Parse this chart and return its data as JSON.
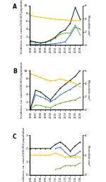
{
  "years": [
    1996,
    1997,
    1998,
    1999,
    2000,
    2001,
    2002,
    2003,
    2004,
    2005,
    2006
  ],
  "panel_A": {
    "label": "A",
    "black": [
      1.0,
      0.7,
      0.5,
      0.7,
      1.2,
      2.0,
      3.2,
      3.8,
      5.5,
      9.5,
      6.5
    ],
    "blue": [
      0.2,
      0.1,
      0.05,
      0.1,
      0.2,
      0.3,
      0.5,
      0.8,
      2.5,
      4.5,
      4.0
    ],
    "green": [
      0.8,
      0.6,
      0.45,
      0.6,
      1.0,
      1.7,
      2.7,
      3.0,
      3.0,
      5.0,
      2.5
    ],
    "gold": [
      4.5,
      4.3,
      4.2,
      4.1,
      4.0,
      3.9,
      3.85,
      3.8,
      3.75,
      3.7,
      3.65
    ],
    "left_ylim": [
      0,
      10
    ],
    "right_ylim": [
      0,
      6
    ],
    "left_yticks": [
      0,
      2,
      4,
      6,
      8,
      10
    ],
    "right_yticks": [
      0,
      2,
      4,
      6
    ]
  },
  "panel_B": {
    "label": "B",
    "black": [
      0.5,
      5.0,
      4.5,
      3.5,
      2.5,
      4.0,
      5.5,
      6.5,
      7.5,
      8.5,
      10.0
    ],
    "blue": [
      0.3,
      3.8,
      3.3,
      2.8,
      2.0,
      2.8,
      3.8,
      4.5,
      5.2,
      6.0,
      6.8
    ],
    "green": [
      0.2,
      1.2,
      1.1,
      0.7,
      0.5,
      1.2,
      1.7,
      2.0,
      2.3,
      2.5,
      3.2
    ],
    "gold": [
      5.5,
      5.2,
      4.9,
      4.6,
      4.4,
      4.5,
      4.7,
      4.5,
      4.3,
      4.0,
      3.5
    ],
    "left_ylim": [
      0,
      10
    ],
    "right_ylim": [
      0,
      6
    ],
    "left_yticks": [
      0,
      2,
      4,
      6,
      8,
      10
    ],
    "right_yticks": [
      0,
      2,
      4,
      6
    ]
  },
  "panel_C": {
    "label": "C",
    "black": [
      2.0,
      2.0,
      2.0,
      2.0,
      2.0,
      2.3,
      2.5,
      2.2,
      1.8,
      2.2,
      2.5
    ],
    "blue": [
      null,
      null,
      null,
      null,
      null,
      2.0,
      2.1,
      1.7,
      1.4,
      1.5,
      1.8
    ],
    "green": [
      null,
      null,
      null,
      null,
      null,
      0.4,
      0.5,
      0.7,
      0.7,
      0.7,
      0.9
    ],
    "gold": [
      2.0,
      2.0,
      2.0,
      2.0,
      2.0,
      2.2,
      2.0,
      1.8,
      1.8,
      1.8,
      1.8
    ],
    "left_ylim": [
      0,
      3
    ],
    "right_ylim": [
      0,
      4
    ],
    "left_yticks": [
      0,
      1,
      2,
      3
    ],
    "right_yticks": [
      0,
      2,
      4
    ]
  },
  "colors": {
    "black": "#1a1a1a",
    "blue": "#4472c4",
    "green": "#70ad47",
    "gold": "#ffc000"
  },
  "left_ylabel": "Incidence, no. cases/100,000 population",
  "right_ylabel": "Macrolide use*"
}
